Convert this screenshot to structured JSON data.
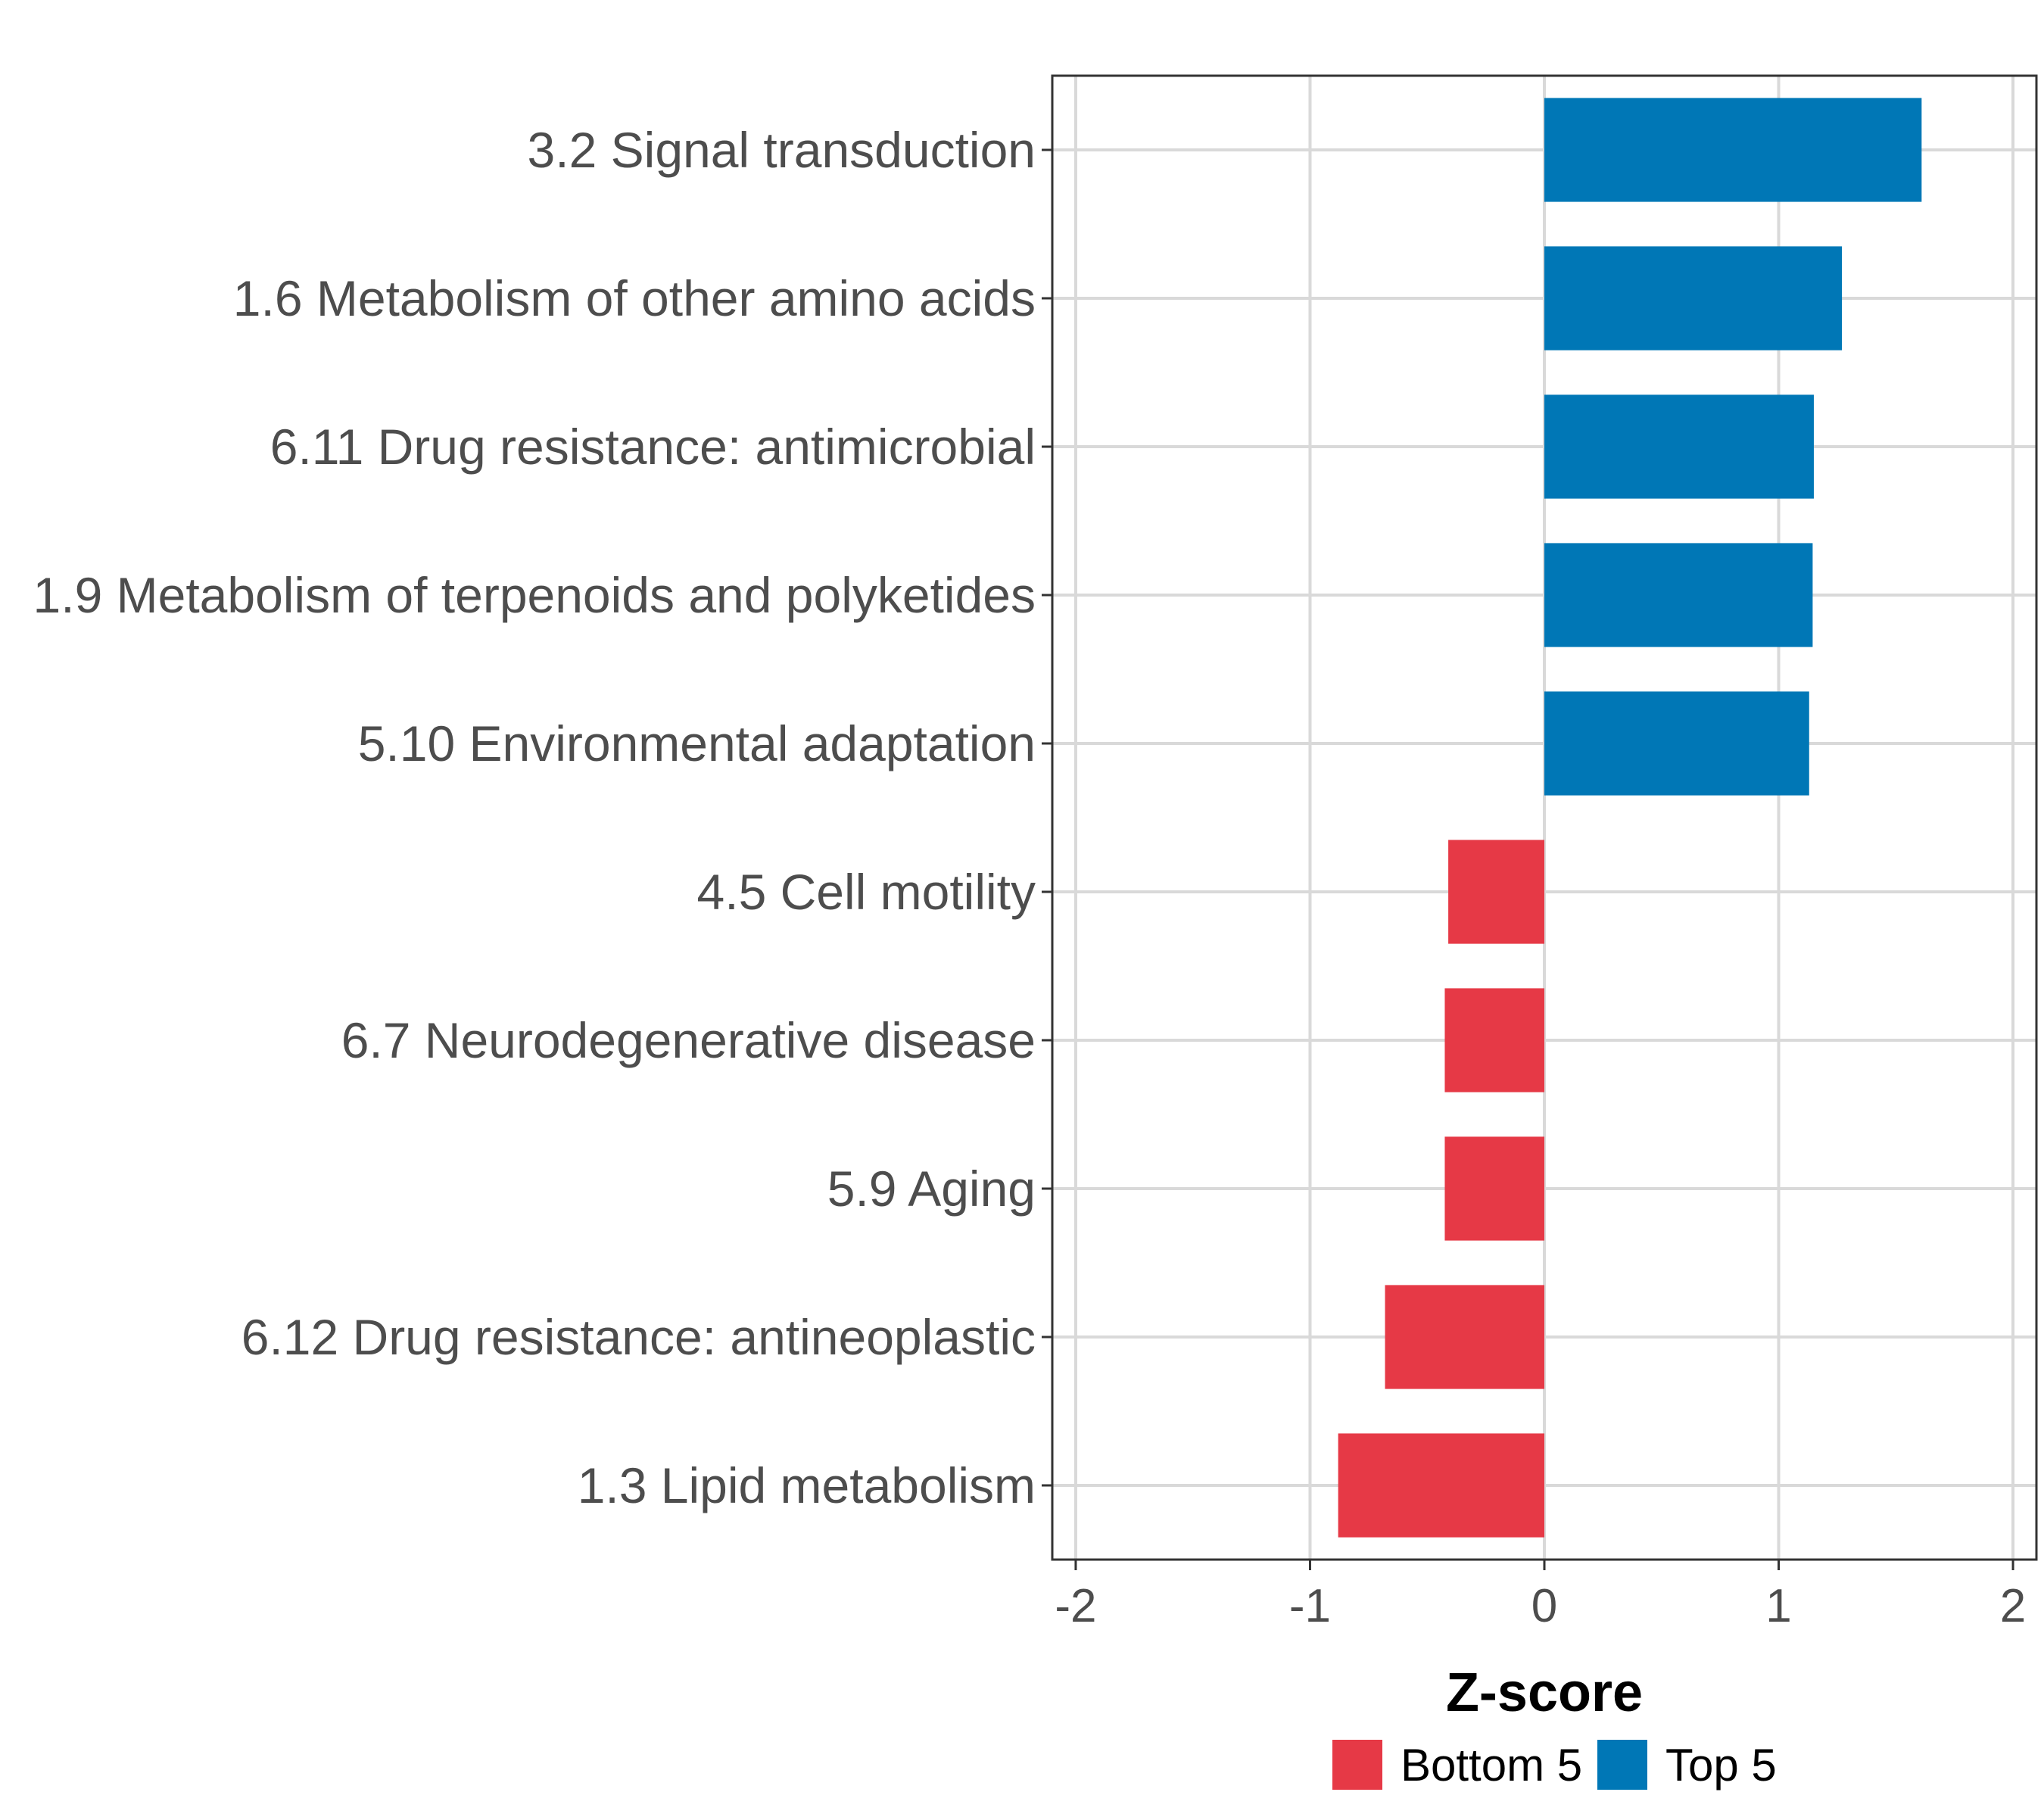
{
  "chart_data": {
    "type": "bar",
    "orientation": "horizontal",
    "categories": [
      "3.2 Signal transduction",
      "1.6 Metabolism of other amino acids",
      "6.11 Drug resistance: antimicrobial",
      "1.9 Metabolism of terpenoids and polyketides",
      "5.10 Environmental adaptation",
      "4.5 Cell motility",
      "6.7 Neurodegenerative disease",
      "5.9 Aging",
      "6.12 Drug resistance: antineoplastic",
      "1.3 Lipid metabolism"
    ],
    "values": [
      1.61,
      1.27,
      1.15,
      1.145,
      1.13,
      -0.41,
      -0.425,
      -0.425,
      -0.68,
      -0.88
    ],
    "groups": [
      "Top 5",
      "Top 5",
      "Top 5",
      "Top 5",
      "Top 5",
      "Bottom 5",
      "Bottom 5",
      "Bottom 5",
      "Bottom 5",
      "Bottom 5"
    ],
    "xlabel": "Z-score",
    "ylabel": "",
    "xlim": [
      -2.1,
      2.1
    ],
    "xticks": [
      -2,
      -1,
      0,
      1,
      2
    ],
    "xtick_labels": [
      "-2",
      "-1",
      "0",
      "1",
      "2"
    ],
    "grid": true,
    "legend": {
      "position": "bottom",
      "entries": [
        {
          "label": "Bottom 5",
          "color": "#e63946"
        },
        {
          "label": "Top 5",
          "color": "#0077b6"
        }
      ]
    }
  }
}
